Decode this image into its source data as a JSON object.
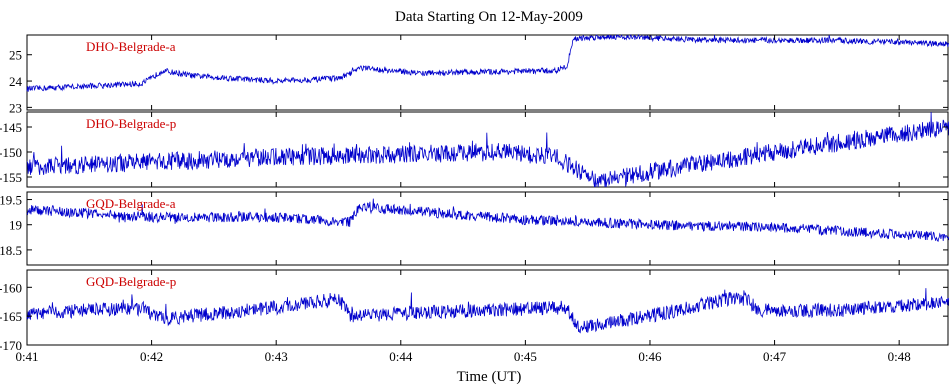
{
  "title": "Data Starting On 12-May-2009",
  "xlabel": "Time (UT)",
  "colors": {
    "line": "#0000cc",
    "label": "#cc0000",
    "axis": "#000000"
  },
  "chart_data": [
    {
      "type": "line",
      "name": "DHO-Belgrade-a",
      "xlim": [
        "0:41",
        "0:48:24"
      ],
      "ylim": [
        22.9,
        25.75
      ],
      "yticks": [
        23,
        24,
        25
      ],
      "base_x": [
        "0:41",
        "0:41:40",
        "0:41:55",
        "0:42:00",
        "0:42:05",
        "0:42:20",
        "0:43:00",
        "0:43:30",
        "0:43:35",
        "0:43:40",
        "0:44:10",
        "0:45:15",
        "0:45:20",
        "0:45:23",
        "0:45:40",
        "0:46:30",
        "0:47:30",
        "0:48:24"
      ],
      "base_y": [
        23.7,
        23.85,
        23.9,
        24.1,
        24.4,
        24.2,
        24.0,
        24.1,
        24.25,
        24.5,
        24.3,
        24.4,
        24.55,
        25.6,
        25.7,
        25.55,
        25.55,
        25.4
      ],
      "noise": 0.11
    },
    {
      "type": "line",
      "name": "DHO-Belgrade-p",
      "xlim": [
        "0:41",
        "0:48:24"
      ],
      "ylim": [
        -157,
        -142
      ],
      "yticks": [
        -155,
        -150,
        -145
      ],
      "base_x": [
        "0:41",
        "0:42:00",
        "0:43:00",
        "0:44:00",
        "0:44:50",
        "0:45:15",
        "0:45:35",
        "0:46:00",
        "0:47:00",
        "0:48:24"
      ],
      "base_y": [
        -153,
        -152,
        -151,
        -150.5,
        -150,
        -151,
        -156,
        -154,
        -150,
        -145
      ],
      "noise": 1.8
    },
    {
      "type": "line",
      "name": "GQD-Belgrade-a",
      "xlim": [
        "0:41",
        "0:48:24"
      ],
      "ylim": [
        18.2,
        19.65
      ],
      "yticks": [
        18.5,
        19,
        19.5
      ],
      "base_x": [
        "0:41",
        "0:42:00",
        "0:43:00",
        "0:43:35",
        "0:43:40",
        "0:45:00",
        "0:46:00",
        "0:47:00",
        "0:48:24"
      ],
      "base_y": [
        19.3,
        19.15,
        19.15,
        19.05,
        19.35,
        19.1,
        19.0,
        18.95,
        18.75
      ],
      "noise": 0.1
    },
    {
      "type": "line",
      "name": "GQD-Belgrade-p",
      "xlim": [
        "0:41",
        "0:48:24"
      ],
      "ylim": [
        -170,
        -157
      ],
      "yticks": [
        -170,
        -165,
        -160
      ],
      "base_x": [
        "0:41",
        "0:41:55",
        "0:42:05",
        "0:43:00",
        "0:43:30",
        "0:43:36",
        "0:44:00",
        "0:45:20",
        "0:45:25",
        "0:46:00",
        "0:46:45",
        "0:46:52",
        "0:47:30",
        "0:48:24"
      ],
      "base_y": [
        -164.5,
        -163.5,
        -165.5,
        -163.5,
        -162,
        -165,
        -164.5,
        -163.5,
        -167,
        -165,
        -161.5,
        -164,
        -164,
        -162.5
      ],
      "noise": 1.2
    }
  ],
  "xticks": [
    "0:41",
    "0:42",
    "0:43",
    "0:44",
    "0:45",
    "0:46",
    "0:47",
    "0:48"
  ]
}
